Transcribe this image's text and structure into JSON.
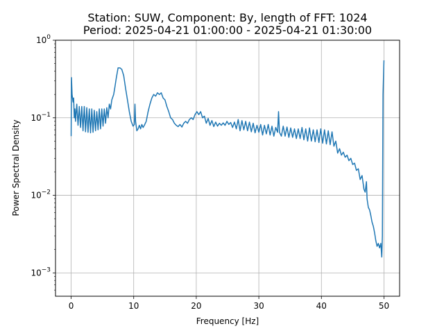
{
  "chart_data": {
    "type": "line",
    "title_line1": "Station: SUW, Component: By, length of FFT: 1024",
    "title_line2": "Period: 2025-04-21 01:00:00 - 2025-04-21 01:30:00",
    "xlabel": "Frequency [Hz]",
    "ylabel": "Power Spectral Density",
    "xscale": "linear",
    "yscale": "log",
    "xlim": [
      -2.5,
      52.5
    ],
    "ylim": [
      0.0005,
      1.0
    ],
    "grid": true,
    "x_ticks": [
      {
        "value": 0,
        "label": "0"
      },
      {
        "value": 10,
        "label": "10"
      },
      {
        "value": 20,
        "label": "20"
      },
      {
        "value": 30,
        "label": "30"
      },
      {
        "value": 40,
        "label": "40"
      },
      {
        "value": 50,
        "label": "50"
      }
    ],
    "y_ticks": [
      {
        "value": 0.001,
        "base": "10",
        "exp": "−3"
      },
      {
        "value": 0.01,
        "base": "10",
        "exp": "−2"
      },
      {
        "value": 0.1,
        "base": "10",
        "exp": "−1"
      },
      {
        "value": 1,
        "base": "10",
        "exp": "0"
      }
    ],
    "series": [
      {
        "color": "#1f77b4",
        "points": [
          [
            0.0,
            0.058
          ],
          [
            0.05,
            0.33
          ],
          [
            0.15,
            0.2
          ],
          [
            0.3,
            0.16
          ],
          [
            0.4,
            0.18
          ],
          [
            0.5,
            0.1
          ],
          [
            0.6,
            0.13
          ],
          [
            0.7,
            0.09
          ],
          [
            0.9,
            0.15
          ],
          [
            1.1,
            0.08
          ],
          [
            1.3,
            0.14
          ],
          [
            1.5,
            0.075
          ],
          [
            1.7,
            0.14
          ],
          [
            1.9,
            0.068
          ],
          [
            2.1,
            0.14
          ],
          [
            2.3,
            0.066
          ],
          [
            2.5,
            0.135
          ],
          [
            2.7,
            0.065
          ],
          [
            2.9,
            0.13
          ],
          [
            3.1,
            0.064
          ],
          [
            3.3,
            0.13
          ],
          [
            3.5,
            0.065
          ],
          [
            3.7,
            0.125
          ],
          [
            3.9,
            0.068
          ],
          [
            4.1,
            0.12
          ],
          [
            4.3,
            0.07
          ],
          [
            4.5,
            0.13
          ],
          [
            4.7,
            0.072
          ],
          [
            4.9,
            0.13
          ],
          [
            5.1,
            0.078
          ],
          [
            5.3,
            0.13
          ],
          [
            5.5,
            0.085
          ],
          [
            5.7,
            0.135
          ],
          [
            5.9,
            0.1
          ],
          [
            6.1,
            0.15
          ],
          [
            6.3,
            0.13
          ],
          [
            6.5,
            0.17
          ],
          [
            6.8,
            0.2
          ],
          [
            7.0,
            0.25
          ],
          [
            7.2,
            0.32
          ],
          [
            7.5,
            0.44
          ],
          [
            7.8,
            0.44
          ],
          [
            8.1,
            0.42
          ],
          [
            8.4,
            0.35
          ],
          [
            8.7,
            0.24
          ],
          [
            9.0,
            0.17
          ],
          [
            9.3,
            0.12
          ],
          [
            9.6,
            0.09
          ],
          [
            9.9,
            0.078
          ],
          [
            10.1,
            0.082
          ],
          [
            10.2,
            0.15
          ],
          [
            10.3,
            0.09
          ],
          [
            10.5,
            0.068
          ],
          [
            10.7,
            0.072
          ],
          [
            10.9,
            0.08
          ],
          [
            11.1,
            0.072
          ],
          [
            11.3,
            0.082
          ],
          [
            11.5,
            0.075
          ],
          [
            11.7,
            0.08
          ],
          [
            12.0,
            0.09
          ],
          [
            12.3,
            0.12
          ],
          [
            12.6,
            0.15
          ],
          [
            12.9,
            0.18
          ],
          [
            13.2,
            0.2
          ],
          [
            13.5,
            0.19
          ],
          [
            13.8,
            0.21
          ],
          [
            14.1,
            0.2
          ],
          [
            14.4,
            0.21
          ],
          [
            14.7,
            0.18
          ],
          [
            15.0,
            0.17
          ],
          [
            15.3,
            0.14
          ],
          [
            15.6,
            0.12
          ],
          [
            15.9,
            0.1
          ],
          [
            16.2,
            0.095
          ],
          [
            16.5,
            0.085
          ],
          [
            16.8,
            0.08
          ],
          [
            17.1,
            0.077
          ],
          [
            17.4,
            0.082
          ],
          [
            17.7,
            0.076
          ],
          [
            18.0,
            0.085
          ],
          [
            18.3,
            0.09
          ],
          [
            18.6,
            0.085
          ],
          [
            18.9,
            0.095
          ],
          [
            19.2,
            0.1
          ],
          [
            19.5,
            0.095
          ],
          [
            19.8,
            0.11
          ],
          [
            20.1,
            0.12
          ],
          [
            20.4,
            0.11
          ],
          [
            20.7,
            0.12
          ],
          [
            21.0,
            0.1
          ],
          [
            21.3,
            0.105
          ],
          [
            21.6,
            0.085
          ],
          [
            21.9,
            0.098
          ],
          [
            22.2,
            0.08
          ],
          [
            22.5,
            0.092
          ],
          [
            22.8,
            0.077
          ],
          [
            23.1,
            0.088
          ],
          [
            23.4,
            0.078
          ],
          [
            23.7,
            0.085
          ],
          [
            24.0,
            0.08
          ],
          [
            24.3,
            0.086
          ],
          [
            24.6,
            0.08
          ],
          [
            24.9,
            0.09
          ],
          [
            25.2,
            0.082
          ],
          [
            25.5,
            0.087
          ],
          [
            25.8,
            0.075
          ],
          [
            26.1,
            0.088
          ],
          [
            26.4,
            0.072
          ],
          [
            26.7,
            0.095
          ],
          [
            27.0,
            0.068
          ],
          [
            27.3,
            0.092
          ],
          [
            27.6,
            0.07
          ],
          [
            27.9,
            0.09
          ],
          [
            28.2,
            0.068
          ],
          [
            28.5,
            0.088
          ],
          [
            28.8,
            0.066
          ],
          [
            29.1,
            0.085
          ],
          [
            29.4,
            0.064
          ],
          [
            29.7,
            0.08
          ],
          [
            30.0,
            0.065
          ],
          [
            30.3,
            0.082
          ],
          [
            30.6,
            0.06
          ],
          [
            30.9,
            0.08
          ],
          [
            31.2,
            0.062
          ],
          [
            31.5,
            0.082
          ],
          [
            31.8,
            0.06
          ],
          [
            32.1,
            0.078
          ],
          [
            32.4,
            0.058
          ],
          [
            32.7,
            0.075
          ],
          [
            33.0,
            0.065
          ],
          [
            33.15,
            0.12
          ],
          [
            33.3,
            0.065
          ],
          [
            33.6,
            0.058
          ],
          [
            33.9,
            0.078
          ],
          [
            34.2,
            0.058
          ],
          [
            34.5,
            0.076
          ],
          [
            34.8,
            0.056
          ],
          [
            35.1,
            0.074
          ],
          [
            35.4,
            0.056
          ],
          [
            35.7,
            0.072
          ],
          [
            36.0,
            0.054
          ],
          [
            36.3,
            0.072
          ],
          [
            36.6,
            0.054
          ],
          [
            36.9,
            0.075
          ],
          [
            37.2,
            0.052
          ],
          [
            37.5,
            0.072
          ],
          [
            37.8,
            0.05
          ],
          [
            38.1,
            0.074
          ],
          [
            38.4,
            0.05
          ],
          [
            38.7,
            0.07
          ],
          [
            39.0,
            0.049
          ],
          [
            39.3,
            0.07
          ],
          [
            39.6,
            0.048
          ],
          [
            39.9,
            0.072
          ],
          [
            40.2,
            0.047
          ],
          [
            40.5,
            0.07
          ],
          [
            40.8,
            0.046
          ],
          [
            41.1,
            0.068
          ],
          [
            41.4,
            0.045
          ],
          [
            41.7,
            0.066
          ],
          [
            42.0,
            0.043
          ],
          [
            42.3,
            0.05
          ],
          [
            42.6,
            0.035
          ],
          [
            42.9,
            0.04
          ],
          [
            43.2,
            0.033
          ],
          [
            43.5,
            0.036
          ],
          [
            43.8,
            0.031
          ],
          [
            44.1,
            0.033
          ],
          [
            44.4,
            0.028
          ],
          [
            44.7,
            0.03
          ],
          [
            45.0,
            0.025
          ],
          [
            45.3,
            0.026
          ],
          [
            45.6,
            0.021
          ],
          [
            45.9,
            0.022
          ],
          [
            46.2,
            0.016
          ],
          [
            46.5,
            0.018
          ],
          [
            46.8,
            0.012
          ],
          [
            47.0,
            0.011
          ],
          [
            47.2,
            0.015
          ],
          [
            47.3,
            0.009
          ],
          [
            47.5,
            0.007
          ],
          [
            47.7,
            0.0065
          ],
          [
            47.9,
            0.0055
          ],
          [
            48.1,
            0.0045
          ],
          [
            48.3,
            0.004
          ],
          [
            48.5,
            0.0033
          ],
          [
            48.7,
            0.0026
          ],
          [
            48.9,
            0.0022
          ],
          [
            49.1,
            0.0024
          ],
          [
            49.3,
            0.0021
          ],
          [
            49.5,
            0.0024
          ],
          [
            49.65,
            0.0016
          ],
          [
            49.75,
            0.003
          ],
          [
            49.85,
            0.2
          ],
          [
            50.0,
            0.55
          ]
        ]
      }
    ]
  }
}
